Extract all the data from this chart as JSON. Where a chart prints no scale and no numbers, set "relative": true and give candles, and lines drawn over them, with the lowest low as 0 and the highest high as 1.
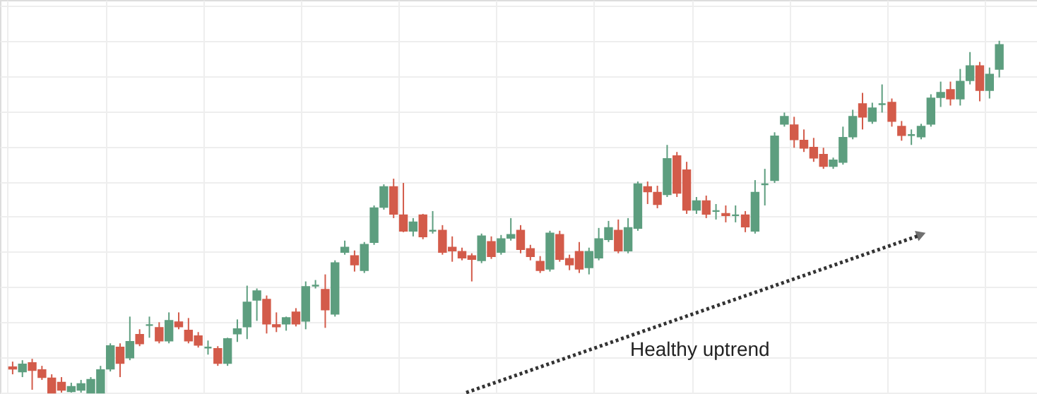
{
  "chart_data": {
    "type": "candlestick",
    "relative": true,
    "grid": true,
    "annotations": [
      "Healthy uptrend"
    ],
    "categories": [
      null,
      null,
      null,
      null,
      null,
      null,
      null,
      null,
      null,
      null,
      null,
      null,
      null,
      null,
      null,
      null,
      null,
      null,
      null,
      null,
      null,
      null,
      null,
      null,
      null,
      null,
      null,
      null,
      null,
      null,
      null,
      null,
      null,
      null,
      null,
      null,
      null,
      null,
      null,
      null,
      null,
      null,
      null,
      null,
      null,
      null,
      null,
      null,
      null,
      null,
      null,
      null,
      null,
      null,
      null,
      null,
      null,
      null,
      null,
      null,
      null,
      null,
      null,
      null,
      null,
      null,
      null,
      null,
      null,
      null,
      null,
      null,
      null,
      null,
      null,
      null,
      null,
      null,
      null,
      null,
      null,
      null,
      null,
      null,
      null,
      null,
      null,
      null,
      null,
      null,
      null,
      null,
      null,
      null,
      null,
      null,
      null,
      null,
      null,
      null,
      null,
      null
    ],
    "ohlc": [
      [
        0.072,
        0.088,
        0.052,
        0.068
      ],
      [
        0.06,
        0.092,
        0.044,
        0.08
      ],
      [
        0.084,
        0.096,
        0.008,
        0.064
      ],
      [
        0.064,
        0.076,
        0.036,
        0.044
      ],
      [
        0.04,
        0.052,
        0,
        0
      ],
      [
        0.028,
        0.044,
        0,
        0.008
      ],
      [
        0.004,
        0.028,
        0,
        0.016
      ],
      [
        0.008,
        0.036,
        0,
        0.024
      ],
      [
        0,
        0.044,
        0,
        0.036
      ],
      [
        0,
        0.076,
        0,
        0.064
      ],
      [
        0.068,
        0.14,
        0.06,
        0.132
      ],
      [
        0.128,
        0.14,
        0.044,
        0.084
      ],
      [
        0.1,
        0.216,
        0.092,
        0.144
      ],
      [
        0.164,
        0.18,
        0.132,
        0.14
      ],
      [
        0.192,
        0.216,
        0.156,
        0.192
      ],
      [
        0.184,
        0.2,
        0.14,
        0.148
      ],
      [
        0.148,
        0.228,
        0.14,
        0.204
      ],
      [
        0.2,
        0.228,
        0.18,
        0.188
      ],
      [
        0.176,
        0.212,
        0.14,
        0.148
      ],
      [
        0.16,
        0.172,
        0.128,
        0.136
      ],
      [
        0.128,
        0.148,
        0.108,
        0.128
      ],
      [
        0.124,
        0.132,
        0.076,
        0.084
      ],
      [
        0.084,
        0.156,
        0.076,
        0.152
      ],
      [
        0.168,
        0.208,
        0.144,
        0.18
      ],
      [
        0.188,
        0.304,
        0.152,
        0.256
      ],
      [
        0.264,
        0.296,
        0.204,
        0.288
      ],
      [
        0.264,
        0.276,
        0.168,
        0.196
      ],
      [
        0.192,
        0.228,
        0.172,
        0.188
      ],
      [
        0.196,
        0.216,
        0.176,
        0.212
      ],
      [
        0.228,
        0.24,
        0.188,
        0.196
      ],
      [
        0.204,
        0.316,
        0.18,
        0.3
      ],
      [
        0.304,
        0.32,
        0.296,
        0.304
      ],
      [
        0.292,
        0.336,
        0.184,
        0.236
      ],
      [
        0.224,
        0.376,
        0.216,
        0.368
      ],
      [
        0.4,
        0.432,
        0.392,
        0.412
      ],
      [
        0.388,
        0.404,
        0.344,
        0.364
      ],
      [
        0.348,
        0.428,
        0.34,
        0.42
      ],
      [
        0.428,
        0.532,
        0.42,
        0.524
      ],
      [
        0.528,
        0.592,
        0.52,
        0.584
      ],
      [
        0.584,
        0.608,
        0.496,
        0.508
      ],
      [
        0.504,
        0.596,
        0.456,
        0.46
      ],
      [
        0.46,
        0.496,
        0.444,
        0.484
      ],
      [
        0.504,
        0.508,
        0.436,
        0.444
      ],
      [
        0.46,
        0.516,
        0.452,
        0.46
      ],
      [
        0.46,
        0.476,
        0.392,
        0.4
      ],
      [
        0.412,
        0.444,
        0.372,
        0.404
      ],
      [
        0.4,
        0.412,
        0.376,
        0.384
      ],
      [
        0.388,
        0.396,
        0.316,
        0.38
      ],
      [
        0.376,
        0.452,
        0.368,
        0.444
      ],
      [
        0.428,
        0.444,
        0.38,
        0.388
      ],
      [
        0.4,
        0.448,
        0.392,
        0.436
      ],
      [
        0.44,
        0.496,
        0.432,
        0.448
      ],
      [
        0.46,
        0.476,
        0.396,
        0.408
      ],
      [
        0.408,
        0.42,
        0.376,
        0.388
      ],
      [
        0.372,
        0.388,
        0.34,
        0.348
      ],
      [
        0.352,
        0.46,
        0.344,
        0.452
      ],
      [
        0.448,
        0.46,
        0.372,
        0.38
      ],
      [
        0.38,
        0.392,
        0.348,
        0.364
      ],
      [
        0.4,
        0.428,
        0.34,
        0.352
      ],
      [
        0.356,
        0.412,
        0.336,
        0.4
      ],
      [
        0.384,
        0.468,
        0.376,
        0.436
      ],
      [
        0.436,
        0.488,
        0.428,
        0.468
      ],
      [
        0.46,
        0.492,
        0.396,
        0.404
      ],
      [
        0.404,
        0.496,
        0.396,
        0.468
      ],
      [
        0.468,
        0.6,
        0.46,
        0.592
      ],
      [
        0.584,
        0.6,
        0.536,
        0.572
      ],
      [
        0.568,
        0.588,
        0.524,
        0.536
      ],
      [
        0.564,
        0.704,
        0.556,
        0.664
      ],
      [
        0.672,
        0.684,
        0.556,
        0.568
      ],
      [
        0.632,
        0.656,
        0.508,
        0.52
      ],
      [
        0.52,
        0.556,
        0.508,
        0.544
      ],
      [
        0.544,
        0.56,
        0.496,
        0.508
      ],
      [
        0.516,
        0.536,
        0.492,
        0.516
      ],
      [
        0.508,
        0.532,
        0.484,
        0.504
      ],
      [
        0.504,
        0.532,
        0.484,
        0.504
      ],
      [
        0.504,
        0.516,
        0.456,
        0.472
      ],
      [
        0.46,
        0.604,
        0.452,
        0.568
      ],
      [
        0.592,
        0.636,
        0.532,
        0.592
      ],
      [
        0.604,
        0.74,
        0.596,
        0.728
      ],
      [
        0.764,
        0.796,
        0.756,
        0.784
      ],
      [
        0.76,
        0.784,
        0.696,
        0.72
      ],
      [
        0.716,
        0.748,
        0.684,
        0.696
      ],
      [
        0.696,
        0.724,
        0.656,
        0.668
      ],
      [
        0.676,
        0.696,
        0.636,
        0.644
      ],
      [
        0.644,
        0.668,
        0.636,
        0.66
      ],
      [
        0.656,
        0.756,
        0.648,
        0.724
      ],
      [
        0.728,
        0.804,
        0.72,
        0.784
      ],
      [
        0.82,
        0.852,
        0.748,
        0.784
      ],
      [
        0.772,
        0.824,
        0.764,
        0.808
      ],
      [
        0.82,
        0.876,
        0.796,
        0.82
      ],
      [
        0.824,
        0.836,
        0.756,
        0.772
      ],
      [
        0.756,
        0.772,
        0.716,
        0.732
      ],
      [
        0.732,
        0.748,
        0.704,
        0.732
      ],
      [
        0.728,
        0.764,
        0.72,
        0.756
      ],
      [
        0.764,
        0.848,
        0.756,
        0.836
      ],
      [
        0.84,
        0.884,
        0.812,
        0.852
      ],
      [
        0.86,
        0.884,
        0.816,
        0.836
      ],
      [
        0.836,
        0.92,
        0.816,
        0.884
      ],
      [
        0.888,
        0.968,
        0.876,
        0.928
      ],
      [
        0.928,
        0.94,
        0.828,
        0.86
      ],
      [
        0.86,
        0.924,
        0.836,
        0.904
      ],
      [
        0.92,
        1,
        0.896,
        0.988
      ]
    ],
    "colors": [
      "#d35b4a",
      "#5d9e7f",
      "#d35b4a",
      "#d35b4a",
      "#d35b4a",
      "#d35b4a",
      "#5d9e7f",
      "#5d9e7f",
      "#5d9e7f",
      "#5d9e7f",
      "#5d9e7f",
      "#d35b4a",
      "#5d9e7f",
      "#d35b4a",
      "#5d9e7f",
      "#d35b4a",
      "#5d9e7f",
      "#d35b4a",
      "#d35b4a",
      "#d35b4a",
      "#5d9e7f",
      "#d35b4a",
      "#5d9e7f",
      "#5d9e7f",
      "#5d9e7f",
      "#5d9e7f",
      "#d35b4a",
      "#d35b4a",
      "#5d9e7f",
      "#d35b4a",
      "#5d9e7f",
      "#5d9e7f",
      "#d35b4a",
      "#5d9e7f",
      "#5d9e7f",
      "#d35b4a",
      "#5d9e7f",
      "#5d9e7f",
      "#5d9e7f",
      "#d35b4a",
      "#d35b4a",
      "#5d9e7f",
      "#d35b4a",
      "#5d9e7f",
      "#d35b4a",
      "#d35b4a",
      "#d35b4a",
      "#d35b4a",
      "#5d9e7f",
      "#d35b4a",
      "#5d9e7f",
      "#5d9e7f",
      "#d35b4a",
      "#d35b4a",
      "#d35b4a",
      "#5d9e7f",
      "#d35b4a",
      "#d35b4a",
      "#d35b4a",
      "#5d9e7f",
      "#5d9e7f",
      "#5d9e7f",
      "#d35b4a",
      "#5d9e7f",
      "#5d9e7f",
      "#d35b4a",
      "#d35b4a",
      "#5d9e7f",
      "#d35b4a",
      "#d35b4a",
      "#5d9e7f",
      "#d35b4a",
      "#5d9e7f",
      "#d35b4a",
      "#5d9e7f",
      "#d35b4a",
      "#5d9e7f",
      "#5d9e7f",
      "#5d9e7f",
      "#5d9e7f",
      "#d35b4a",
      "#d35b4a",
      "#d35b4a",
      "#d35b4a",
      "#5d9e7f",
      "#5d9e7f",
      "#5d9e7f",
      "#d35b4a",
      "#5d9e7f",
      "#5d9e7f",
      "#d35b4a",
      "#d35b4a",
      "#5d9e7f",
      "#5d9e7f",
      "#5d9e7f",
      "#5d9e7f",
      "#d35b4a",
      "#5d9e7f",
      "#5d9e7f",
      "#d35b4a",
      "#5d9e7f",
      "#5d9e7f"
    ]
  }
}
